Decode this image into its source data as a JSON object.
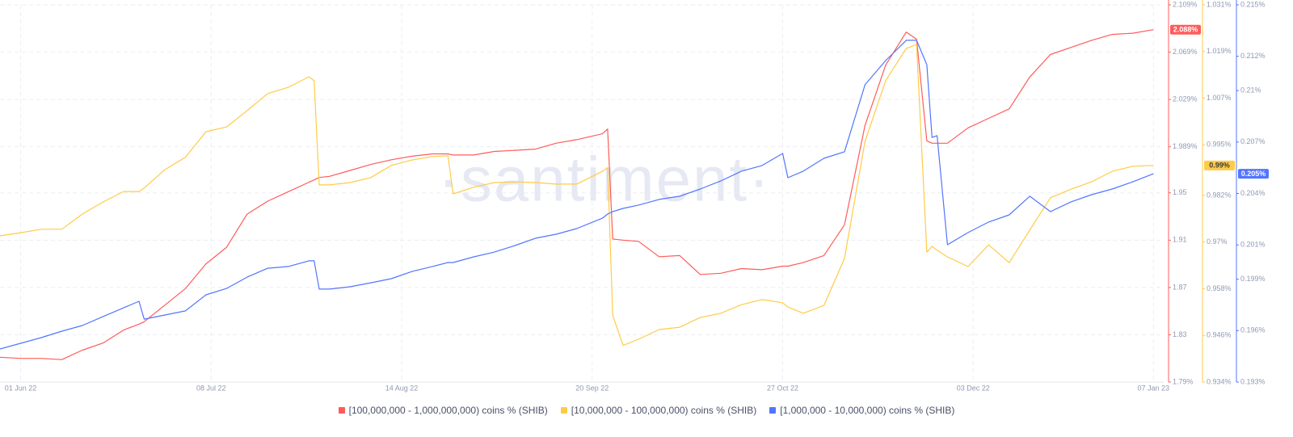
{
  "chart_data": {
    "type": "line",
    "watermark": "·santiment·",
    "x": [
      "2022-05-28",
      "2022-06-01",
      "2022-06-05",
      "2022-06-09",
      "2022-06-13",
      "2022-06-17",
      "2022-06-21",
      "2022-06-24",
      "2022-06-25",
      "2022-06-29",
      "2022-07-03",
      "2022-07-07",
      "2022-07-11",
      "2022-07-15",
      "2022-07-19",
      "2022-07-23",
      "2022-07-27",
      "2022-07-28",
      "2022-07-29",
      "2022-07-31",
      "2022-08-04",
      "2022-08-08",
      "2022-08-12",
      "2022-08-16",
      "2022-08-20",
      "2022-08-23",
      "2022-08-24",
      "2022-08-28",
      "2022-09-01",
      "2022-09-05",
      "2022-09-09",
      "2022-09-13",
      "2022-09-17",
      "2022-09-22",
      "2022-09-23",
      "2022-09-24",
      "2022-09-26",
      "2022-09-29",
      "2022-10-03",
      "2022-10-07",
      "2022-10-11",
      "2022-10-15",
      "2022-10-19",
      "2022-10-23",
      "2022-10-27",
      "2022-10-28",
      "2022-10-31",
      "2022-11-04",
      "2022-11-08",
      "2022-11-12",
      "2022-11-16",
      "2022-11-20",
      "2022-11-22",
      "2022-11-24",
      "2022-11-25",
      "2022-11-26",
      "2022-11-28",
      "2022-12-02",
      "2022-12-06",
      "2022-12-10",
      "2022-12-14",
      "2022-12-18",
      "2022-12-22",
      "2022-12-26",
      "2022-12-30",
      "2023-01-03",
      "2023-01-07"
    ],
    "xlim": [
      "2022-05-28",
      "2023-01-09"
    ],
    "xticks": [
      {
        "value": "2022-06-01",
        "label": "01 Jun 22"
      },
      {
        "value": "2022-07-08",
        "label": "08 Jul 22"
      },
      {
        "value": "2022-08-14",
        "label": "14 Aug 22"
      },
      {
        "value": "2022-09-20",
        "label": "20 Sep 22"
      },
      {
        "value": "2022-10-27",
        "label": "27 Oct 22"
      },
      {
        "value": "2022-12-03",
        "label": "03 Dec 22"
      },
      {
        "value": "2023-01-07",
        "label": "07 Jan 23"
      }
    ],
    "ylim": [
      1.79,
      2.109
    ],
    "yticks": [
      {
        "value": 1.79,
        "label": "1.79%"
      },
      1.83,
      1.87,
      1.91,
      1.95,
      {
        "value": 1.989,
        "label": "1.989%"
      },
      {
        "value": 2.029,
        "label": "2.029%"
      },
      {
        "value": 2.069,
        "label": "2.069%"
      },
      {
        "value": 2.109,
        "label": "2.109%"
      }
    ],
    "y2lim": [
      0.934,
      1.031
    ],
    "y2ticks": [
      {
        "value": 0.934,
        "label": "0.934%"
      },
      {
        "value": 0.946,
        "label": "0.946%"
      },
      {
        "value": 0.958,
        "label": "0.958%"
      },
      {
        "value": 0.97,
        "label": "0.97%"
      },
      {
        "value": 0.982,
        "label": "0.982%"
      },
      {
        "value": 0.995,
        "label": "0.995%"
      },
      {
        "value": 1.007,
        "label": "1.007%"
      },
      {
        "value": 1.019,
        "label": "1.019%"
      },
      {
        "value": 1.031,
        "label": "1.031%"
      }
    ],
    "y3lim": [
      0.193,
      0.215
    ],
    "y3ticks": [
      {
        "value": 0.193,
        "label": "0.193%"
      },
      {
        "value": 0.196,
        "label": "0.196%"
      },
      {
        "value": 0.199,
        "label": "0.199%"
      },
      {
        "value": 0.201,
        "label": "0.201%"
      },
      {
        "value": 0.204,
        "label": "0.204%"
      },
      {
        "value": 0.207,
        "label": "0.207%"
      },
      {
        "value": 0.21,
        "label": "0.21%"
      },
      {
        "value": 0.212,
        "label": "0.212%"
      },
      {
        "value": 0.215,
        "label": "0.215%"
      }
    ],
    "grid": true,
    "series": [
      {
        "name": "[100,000,000 - 1,000,000,000) coins % (SHIB)",
        "color": "#ff5b5b",
        "axis": "y",
        "current_label": "2.088%",
        "values": [
          1.811,
          1.81,
          1.81,
          1.809,
          1.817,
          1.823,
          1.834,
          1.839,
          1.841,
          1.855,
          1.869,
          1.89,
          1.904,
          1.932,
          1.943,
          1.951,
          1.959,
          1.961,
          1.963,
          1.964,
          1.969,
          1.974,
          1.978,
          1.981,
          1.983,
          1.983,
          1.982,
          1.982,
          1.985,
          1.986,
          1.987,
          1.992,
          1.995,
          2.0,
          2.004,
          1.911,
          1.91,
          1.909,
          1.896,
          1.897,
          1.881,
          1.882,
          1.886,
          1.885,
          1.888,
          1.888,
          1.891,
          1.897,
          1.923,
          2.007,
          2.058,
          2.086,
          2.08,
          1.994,
          1.992,
          1.992,
          1.992,
          2.005,
          2.013,
          2.021,
          2.048,
          2.067,
          2.073,
          2.079,
          2.084,
          2.085,
          2.088
        ]
      },
      {
        "name": "[10,000,000 - 100,000,000) coins % (SHIB)",
        "color": "#ffcb47",
        "axis": "y2",
        "current_label": "0.99%",
        "values": [
          0.9716,
          0.9724,
          0.9733,
          0.9733,
          0.9772,
          0.9803,
          0.983,
          0.983,
          0.9839,
          0.9886,
          0.9918,
          0.9984,
          0.9996,
          1.0038,
          1.0082,
          1.0098,
          1.0125,
          1.0115,
          0.9847,
          0.9847,
          0.9853,
          0.9866,
          0.9897,
          0.9911,
          0.992,
          0.9922,
          0.9824,
          0.9841,
          0.9853,
          0.9855,
          0.9853,
          0.9849,
          0.9849,
          0.9882,
          0.9891,
          0.9512,
          0.9434,
          0.945,
          0.9475,
          0.9481,
          0.9506,
          0.9517,
          0.9539,
          0.9552,
          0.9544,
          0.9533,
          0.9517,
          0.9537,
          0.9658,
          0.9959,
          1.0115,
          1.0198,
          1.0208,
          0.9674,
          0.9689,
          0.9679,
          0.9662,
          0.9637,
          0.9693,
          0.9647,
          0.9731,
          0.9814,
          0.9836,
          0.9855,
          0.9882,
          0.9895,
          0.9897
        ]
      },
      {
        "name": "[1,000,000 - 10,000,000) coins % (SHIB)",
        "color": "#5275ff",
        "axis": "y3",
        "current_label": "0.205%",
        "values": [
          0.19493,
          0.19526,
          0.19559,
          0.19597,
          0.1963,
          0.19682,
          0.19733,
          0.19771,
          0.19667,
          0.19691,
          0.19715,
          0.19809,
          0.19846,
          0.19912,
          0.19964,
          0.19974,
          0.20007,
          0.20007,
          0.19842,
          0.19842,
          0.19856,
          0.19879,
          0.19903,
          0.19945,
          0.19974,
          0.19997,
          0.19997,
          0.2003,
          0.20058,
          0.20096,
          0.20139,
          0.20162,
          0.20195,
          0.20256,
          0.2028,
          0.20294,
          0.20313,
          0.20332,
          0.20365,
          0.20384,
          0.20426,
          0.20473,
          0.2053,
          0.20563,
          0.20633,
          0.20492,
          0.2053,
          0.20605,
          0.20643,
          0.21034,
          0.21175,
          0.21293,
          0.21293,
          0.21151,
          0.20727,
          0.20737,
          0.20101,
          0.20172,
          0.20233,
          0.20275,
          0.20384,
          0.20294,
          0.20351,
          0.20393,
          0.20426,
          0.20468,
          0.20515
        ]
      }
    ]
  }
}
